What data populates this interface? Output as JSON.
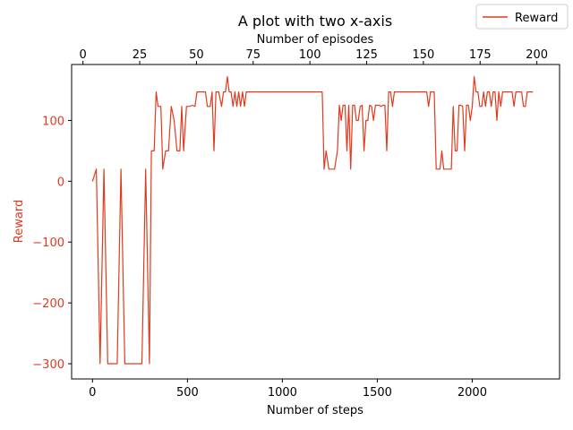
{
  "chart_data": {
    "type": "line",
    "title": "A plot with two x-axis",
    "xlabel": "Number of steps",
    "x2label": "Number of episodes",
    "ylabel": "Reward",
    "xlim": [
      -110,
      2460
    ],
    "x2lim": [
      -5,
      210
    ],
    "ylim": [
      -325,
      192
    ],
    "xticks": [
      0,
      500,
      1000,
      1500,
      2000
    ],
    "x2ticks": [
      0,
      25,
      50,
      75,
      100,
      125,
      150,
      175,
      200
    ],
    "yticks": [
      -300,
      -200,
      -100,
      0,
      100
    ],
    "legend": {
      "position": "top-right",
      "entries": [
        "Reward"
      ]
    },
    "colors": {
      "series": "#e03a1e",
      "ylabel": "#e03a1e",
      "ytick": "#e03a1e"
    },
    "series": [
      {
        "name": "Reward",
        "points": [
          [
            0,
            0
          ],
          [
            20,
            20
          ],
          [
            40,
            -300
          ],
          [
            60,
            20
          ],
          [
            80,
            -300
          ],
          [
            100,
            -300
          ],
          [
            130,
            -300
          ],
          [
            150,
            20
          ],
          [
            170,
            -300
          ],
          [
            200,
            -300
          ],
          [
            230,
            -300
          ],
          [
            260,
            -300
          ],
          [
            280,
            20
          ],
          [
            300,
            -300
          ],
          [
            310,
            50
          ],
          [
            325,
            50
          ],
          [
            335,
            147
          ],
          [
            345,
            123
          ],
          [
            360,
            123
          ],
          [
            370,
            20
          ],
          [
            385,
            50
          ],
          [
            400,
            50
          ],
          [
            415,
            123
          ],
          [
            430,
            100
          ],
          [
            445,
            50
          ],
          [
            460,
            50
          ],
          [
            470,
            123
          ],
          [
            480,
            50
          ],
          [
            495,
            123
          ],
          [
            510,
            123
          ],
          [
            525,
            125
          ],
          [
            540,
            123
          ],
          [
            550,
            147
          ],
          [
            570,
            147
          ],
          [
            595,
            147
          ],
          [
            605,
            123
          ],
          [
            620,
            123
          ],
          [
            630,
            147
          ],
          [
            640,
            50
          ],
          [
            650,
            147
          ],
          [
            665,
            147
          ],
          [
            680,
            123
          ],
          [
            690,
            147
          ],
          [
            700,
            147
          ],
          [
            710,
            172
          ],
          [
            720,
            147
          ],
          [
            730,
            147
          ],
          [
            740,
            123
          ],
          [
            750,
            147
          ],
          [
            760,
            123
          ],
          [
            770,
            147
          ],
          [
            780,
            123
          ],
          [
            790,
            147
          ],
          [
            800,
            123
          ],
          [
            810,
            147
          ],
          [
            820,
            147
          ],
          [
            900,
            147
          ],
          [
            1000,
            147
          ],
          [
            1100,
            147
          ],
          [
            1200,
            147
          ],
          [
            1210,
            147
          ],
          [
            1220,
            20
          ],
          [
            1230,
            50
          ],
          [
            1245,
            20
          ],
          [
            1260,
            20
          ],
          [
            1275,
            20
          ],
          [
            1290,
            50
          ],
          [
            1300,
            125
          ],
          [
            1310,
            100
          ],
          [
            1320,
            125
          ],
          [
            1330,
            125
          ],
          [
            1340,
            50
          ],
          [
            1350,
            125
          ],
          [
            1360,
            20
          ],
          [
            1370,
            125
          ],
          [
            1380,
            125
          ],
          [
            1390,
            100
          ],
          [
            1400,
            100
          ],
          [
            1410,
            123
          ],
          [
            1420,
            125
          ],
          [
            1430,
            50
          ],
          [
            1440,
            100
          ],
          [
            1450,
            100
          ],
          [
            1460,
            125
          ],
          [
            1470,
            123
          ],
          [
            1480,
            100
          ],
          [
            1490,
            125
          ],
          [
            1500,
            125
          ],
          [
            1510,
            125
          ],
          [
            1520,
            123
          ],
          [
            1530,
            125
          ],
          [
            1540,
            125
          ],
          [
            1550,
            50
          ],
          [
            1560,
            147
          ],
          [
            1570,
            147
          ],
          [
            1580,
            123
          ],
          [
            1590,
            147
          ],
          [
            1600,
            147
          ],
          [
            1650,
            147
          ],
          [
            1700,
            147
          ],
          [
            1760,
            147
          ],
          [
            1770,
            123
          ],
          [
            1780,
            147
          ],
          [
            1800,
            147
          ],
          [
            1810,
            20
          ],
          [
            1830,
            20
          ],
          [
            1840,
            50
          ],
          [
            1850,
            20
          ],
          [
            1860,
            20
          ],
          [
            1875,
            20
          ],
          [
            1890,
            20
          ],
          [
            1900,
            123
          ],
          [
            1910,
            50
          ],
          [
            1920,
            50
          ],
          [
            1930,
            125
          ],
          [
            1940,
            125
          ],
          [
            1950,
            123
          ],
          [
            1960,
            50
          ],
          [
            1970,
            125
          ],
          [
            1980,
            125
          ],
          [
            1990,
            100
          ],
          [
            2000,
            123
          ],
          [
            2010,
            172
          ],
          [
            2020,
            147
          ],
          [
            2030,
            147
          ],
          [
            2040,
            123
          ],
          [
            2050,
            123
          ],
          [
            2060,
            147
          ],
          [
            2070,
            123
          ],
          [
            2080,
            147
          ],
          [
            2090,
            147
          ],
          [
            2100,
            123
          ],
          [
            2110,
            147
          ],
          [
            2120,
            147
          ],
          [
            2130,
            100
          ],
          [
            2140,
            147
          ],
          [
            2150,
            123
          ],
          [
            2160,
            147
          ],
          [
            2200,
            147
          ],
          [
            2210,
            147
          ],
          [
            2220,
            123
          ],
          [
            2230,
            147
          ],
          [
            2240,
            147
          ],
          [
            2250,
            147
          ],
          [
            2260,
            147
          ],
          [
            2270,
            123
          ],
          [
            2280,
            123
          ],
          [
            2290,
            147
          ],
          [
            2310,
            147
          ],
          [
            2320,
            147
          ]
        ]
      }
    ]
  }
}
